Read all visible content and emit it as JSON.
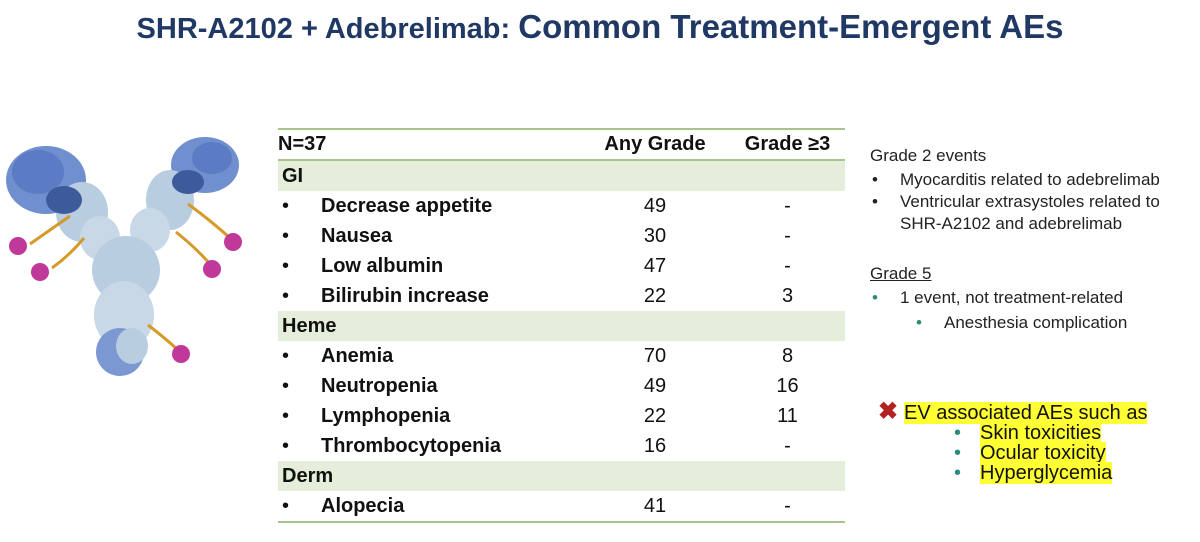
{
  "title": {
    "part1": "SHR-A2102 + Adebrelimab: ",
    "part2": "Common Treatment-Emergent AEs"
  },
  "table": {
    "headers": [
      "N=37",
      "Any Grade",
      "Grade ≥3"
    ],
    "sections": [
      {
        "name": "GI",
        "rows": [
          {
            "ae": "Decrease appetite",
            "any": "49",
            "g3": "-"
          },
          {
            "ae": "Nausea",
            "any": "30",
            "g3": "-"
          },
          {
            "ae": "Low albumin",
            "any": "47",
            "g3": "-"
          },
          {
            "ae": "Bilirubin increase",
            "any": "22",
            "g3": "3"
          }
        ]
      },
      {
        "name": "Heme",
        "rows": [
          {
            "ae": "Anemia",
            "any": "70",
            "g3": "8"
          },
          {
            "ae": "Neutropenia",
            "any": "49",
            "g3": "16"
          },
          {
            "ae": "Lymphopenia",
            "any": "22",
            "g3": "11"
          },
          {
            "ae": "Thrombocytopenia",
            "any": "16",
            "g3": "-"
          }
        ]
      },
      {
        "name": "Derm",
        "rows": [
          {
            "ae": "Alopecia",
            "any": "41",
            "g3": "-"
          }
        ]
      }
    ]
  },
  "grade2": {
    "heading": "Grade 2 events",
    "items": [
      "Myocarditis related to adebrelimab",
      "Ventricular extrasystoles related to SHR-A2102 and adebrelimab"
    ]
  },
  "grade5": {
    "heading": "Grade 5",
    "item": "1 event, not treatment-related",
    "subitem": "Anesthesia complication"
  },
  "ev": {
    "heading": "EV associated AEs such as",
    "items": [
      "Skin toxicities",
      "Ocular toxicity",
      "Hyperglycemia"
    ]
  },
  "colors": {
    "title": "#1f3864",
    "table_rule": "#a9c48a",
    "section_fill": "#e4eedb",
    "highlight": "#ffff33",
    "teal_bullet": "#2e8b7a",
    "x_mark": "#b22222"
  },
  "icons": {
    "bullet": "•",
    "ev_mark": "✖"
  }
}
